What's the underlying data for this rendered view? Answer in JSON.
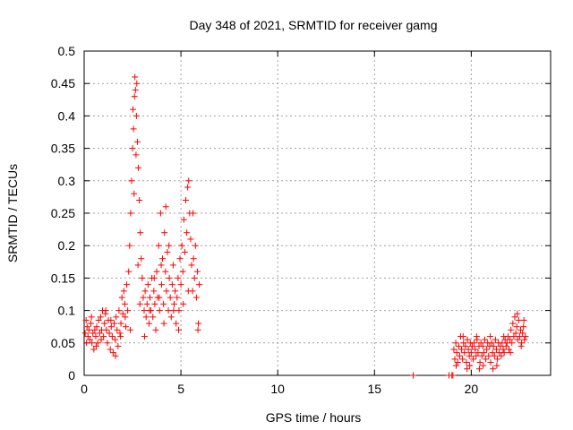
{
  "chart_data": {
    "type": "scatter",
    "title": "Day 348 of 2021, SRMTID for receiver gamg",
    "xlabel": "GPS time / hours",
    "ylabel": "SRMTID / TECUs",
    "xlim": [
      0,
      24.1
    ],
    "ylim": [
      0,
      0.5
    ],
    "x_ticks": [
      0,
      5,
      10,
      15,
      20
    ],
    "x_tick_labels": [
      "0",
      "5",
      "10",
      "15",
      "20"
    ],
    "y_ticks": [
      0,
      0.05,
      0.1,
      0.15,
      0.2,
      0.25,
      0.3,
      0.35,
      0.4,
      0.45,
      0.5
    ],
    "y_tick_labels": [
      "0",
      "0.05",
      "0.1",
      "0.15",
      "0.2",
      "0.25",
      "0.3",
      "0.35",
      "0.4",
      "0.45",
      "0.5"
    ],
    "grid": true,
    "marker": "+",
    "color": "#ff0000",
    "series": [
      {
        "name": "SRMTID",
        "points": [
          [
            0.05,
            0.065
          ],
          [
            0.1,
            0.085
          ],
          [
            0.15,
            0.075
          ],
          [
            0.2,
            0.06
          ],
          [
            0.25,
            0.07
          ],
          [
            0.3,
            0.055
          ],
          [
            0.35,
            0.08
          ],
          [
            0.4,
            0.05
          ],
          [
            0.45,
            0.065
          ],
          [
            0.5,
            0.04
          ],
          [
            0.55,
            0.07
          ],
          [
            0.6,
            0.06
          ],
          [
            0.65,
            0.075
          ],
          [
            0.7,
            0.05
          ],
          [
            0.75,
            0.085
          ],
          [
            0.8,
            0.065
          ],
          [
            0.85,
            0.09
          ],
          [
            0.9,
            0.07
          ],
          [
            0.95,
            0.1
          ],
          [
            1.0,
            0.06
          ],
          [
            1.05,
            0.08
          ],
          [
            1.1,
            0.095
          ],
          [
            1.15,
            0.07
          ],
          [
            1.2,
            0.05
          ],
          [
            1.25,
            0.085
          ],
          [
            1.3,
            0.065
          ],
          [
            1.35,
            0.04
          ],
          [
            1.4,
            0.075
          ],
          [
            1.45,
            0.06
          ],
          [
            1.5,
            0.035
          ],
          [
            1.55,
            0.08
          ],
          [
            1.6,
            0.055
          ],
          [
            1.65,
            0.09
          ],
          [
            1.7,
            0.07
          ],
          [
            1.75,
            0.045
          ],
          [
            1.8,
            0.1
          ],
          [
            1.85,
            0.065
          ],
          [
            1.9,
            0.08
          ],
          [
            1.95,
            0.12
          ],
          [
            2.0,
            0.095
          ],
          [
            2.05,
            0.13
          ],
          [
            2.1,
            0.11
          ],
          [
            2.15,
            0.075
          ],
          [
            2.2,
            0.14
          ],
          [
            2.25,
            0.1
          ],
          [
            2.3,
            0.16
          ],
          [
            2.35,
            0.2
          ],
          [
            2.4,
            0.25
          ],
          [
            2.45,
            0.3
          ],
          [
            2.5,
            0.35
          ],
          [
            2.55,
            0.38
          ],
          [
            2.6,
            0.43
          ],
          [
            2.62,
            0.46
          ],
          [
            2.65,
            0.44
          ],
          [
            2.7,
            0.4
          ],
          [
            2.75,
            0.36
          ],
          [
            2.8,
            0.32
          ],
          [
            2.85,
            0.27
          ],
          [
            2.9,
            0.22
          ],
          [
            2.95,
            0.18
          ],
          [
            3.0,
            0.15
          ],
          [
            3.05,
            0.12
          ],
          [
            3.1,
            0.1
          ],
          [
            3.15,
            0.13
          ],
          [
            3.2,
            0.09
          ],
          [
            3.25,
            0.11
          ],
          [
            3.3,
            0.14
          ],
          [
            3.35,
            0.08
          ],
          [
            3.4,
            0.12
          ],
          [
            3.45,
            0.1
          ],
          [
            3.5,
            0.15
          ],
          [
            3.55,
            0.09
          ],
          [
            3.6,
            0.13
          ],
          [
            3.65,
            0.11
          ],
          [
            3.7,
            0.07
          ],
          [
            3.75,
            0.16
          ],
          [
            3.8,
            0.12
          ],
          [
            3.85,
            0.2
          ],
          [
            3.9,
            0.1
          ],
          [
            3.95,
            0.25
          ],
          [
            4.0,
            0.14
          ],
          [
            4.05,
            0.18
          ],
          [
            4.1,
            0.11
          ],
          [
            4.15,
            0.22
          ],
          [
            4.2,
            0.16
          ],
          [
            4.25,
            0.13
          ],
          [
            4.3,
            0.19
          ],
          [
            4.35,
            0.1
          ],
          [
            4.4,
            0.15
          ],
          [
            4.45,
            0.12
          ],
          [
            4.5,
            0.09
          ],
          [
            4.55,
            0.14
          ],
          [
            4.6,
            0.17
          ],
          [
            4.65,
            0.11
          ],
          [
            4.7,
            0.13
          ],
          [
            4.75,
            0.08
          ],
          [
            4.8,
            0.12
          ],
          [
            4.85,
            0.15
          ],
          [
            4.9,
            0.1
          ],
          [
            4.95,
            0.18
          ],
          [
            5.0,
            0.14
          ],
          [
            5.05,
            0.2
          ],
          [
            5.1,
            0.16
          ],
          [
            5.15,
            0.24
          ],
          [
            5.2,
            0.19
          ],
          [
            5.25,
            0.27
          ],
          [
            5.3,
            0.22
          ],
          [
            5.35,
            0.29
          ],
          [
            5.4,
            0.3
          ],
          [
            5.45,
            0.25
          ],
          [
            5.5,
            0.21
          ],
          [
            5.55,
            0.17
          ],
          [
            5.6,
            0.13
          ],
          [
            5.65,
            0.18
          ],
          [
            5.7,
            0.15
          ],
          [
            5.75,
            0.2
          ],
          [
            5.8,
            0.12
          ],
          [
            5.85,
            0.16
          ],
          [
            5.9,
            0.08
          ],
          [
            5.95,
            0.14
          ],
          [
            0.12,
            0.05
          ],
          [
            0.38,
            0.09
          ],
          [
            0.62,
            0.045
          ],
          [
            0.88,
            0.055
          ],
          [
            1.12,
            0.1
          ],
          [
            1.38,
            0.085
          ],
          [
            1.62,
            0.03
          ],
          [
            1.88,
            0.06
          ],
          [
            2.12,
            0.09
          ],
          [
            2.38,
            0.07
          ],
          [
            2.58,
            0.28
          ],
          [
            2.68,
            0.34
          ],
          [
            2.78,
            0.17
          ],
          [
            2.88,
            0.11
          ],
          [
            3.12,
            0.06
          ],
          [
            3.38,
            0.1
          ],
          [
            3.62,
            0.15
          ],
          [
            3.88,
            0.12
          ],
          [
            4.12,
            0.08
          ],
          [
            4.38,
            0.2
          ],
          [
            4.62,
            0.1
          ],
          [
            4.88,
            0.07
          ],
          [
            5.12,
            0.11
          ],
          [
            5.38,
            0.13
          ],
          [
            5.62,
            0.25
          ],
          [
            5.88,
            0.07
          ],
          [
            4.22,
            0.26
          ],
          [
            3.98,
            0.17
          ],
          [
            2.52,
            0.41
          ],
          [
            2.72,
            0.45
          ],
          [
            17.0,
            0.0
          ],
          [
            18.85,
            0.0
          ],
          [
            19.0,
            0.0
          ],
          [
            19.05,
            0.0
          ],
          [
            19.1,
            0.04
          ],
          [
            19.15,
            0.025
          ],
          [
            19.2,
            0.05
          ],
          [
            19.25,
            0.035
          ],
          [
            19.3,
            0.02
          ],
          [
            19.35,
            0.045
          ],
          [
            19.4,
            0.03
          ],
          [
            19.45,
            0.06
          ],
          [
            19.5,
            0.04
          ],
          [
            19.55,
            0.025
          ],
          [
            19.6,
            0.05
          ],
          [
            19.65,
            0.035
          ],
          [
            19.7,
            0.045
          ],
          [
            19.75,
            0.02
          ],
          [
            19.8,
            0.055
          ],
          [
            19.85,
            0.04
          ],
          [
            19.9,
            0.03
          ],
          [
            19.95,
            0.05
          ],
          [
            20.0,
            0.035
          ],
          [
            20.05,
            0.045
          ],
          [
            20.1,
            0.025
          ],
          [
            20.15,
            0.05
          ],
          [
            20.2,
            0.04
          ],
          [
            20.25,
            0.03
          ],
          [
            20.3,
            0.055
          ],
          [
            20.35,
            0.035
          ],
          [
            20.4,
            0.045
          ],
          [
            20.45,
            0.02
          ],
          [
            20.5,
            0.05
          ],
          [
            20.55,
            0.03
          ],
          [
            20.6,
            0.045
          ],
          [
            20.65,
            0.035
          ],
          [
            20.7,
            0.055
          ],
          [
            20.75,
            0.025
          ],
          [
            20.8,
            0.04
          ],
          [
            20.85,
            0.05
          ],
          [
            20.9,
            0.03
          ],
          [
            20.95,
            0.045
          ],
          [
            21.0,
            0.02
          ],
          [
            21.05,
            0.05
          ],
          [
            21.1,
            0.035
          ],
          [
            21.15,
            0.045
          ],
          [
            21.2,
            0.03
          ],
          [
            21.25,
            0.055
          ],
          [
            21.3,
            0.04
          ],
          [
            21.35,
            0.025
          ],
          [
            21.4,
            0.05
          ],
          [
            21.45,
            0.035
          ],
          [
            21.5,
            0.045
          ],
          [
            21.55,
            0.03
          ],
          [
            21.6,
            0.05
          ],
          [
            21.65,
            0.04
          ],
          [
            21.7,
            0.035
          ],
          [
            21.75,
            0.055
          ],
          [
            21.8,
            0.045
          ],
          [
            21.85,
            0.05
          ],
          [
            21.9,
            0.06
          ],
          [
            21.95,
            0.04
          ],
          [
            22.0,
            0.055
          ],
          [
            22.05,
            0.07
          ],
          [
            22.1,
            0.05
          ],
          [
            22.15,
            0.08
          ],
          [
            22.2,
            0.06
          ],
          [
            22.25,
            0.09
          ],
          [
            22.3,
            0.065
          ],
          [
            22.35,
            0.075
          ],
          [
            22.4,
            0.055
          ],
          [
            22.45,
            0.085
          ],
          [
            22.5,
            0.06
          ],
          [
            22.55,
            0.07
          ],
          [
            22.6,
            0.05
          ],
          [
            22.65,
            0.065
          ],
          [
            22.7,
            0.075
          ],
          [
            22.75,
            0.055
          ],
          [
            22.8,
            0.06
          ],
          [
            19.22,
            0.015
          ],
          [
            19.58,
            0.06
          ],
          [
            19.92,
            0.015
          ],
          [
            20.28,
            0.06
          ],
          [
            20.62,
            0.015
          ],
          [
            20.98,
            0.06
          ],
          [
            21.32,
            0.015
          ],
          [
            21.68,
            0.06
          ],
          [
            22.02,
            0.035
          ],
          [
            22.38,
            0.095
          ],
          [
            22.58,
            0.045
          ],
          [
            22.72,
            0.085
          ],
          [
            21.12,
            0.01
          ],
          [
            20.42,
            0.01
          ],
          [
            19.78,
            0.01
          ]
        ]
      }
    ]
  }
}
